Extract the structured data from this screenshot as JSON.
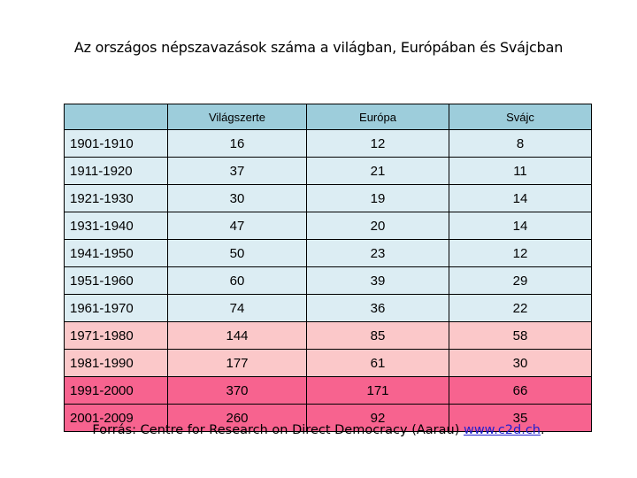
{
  "title": "Az országos népszavazások száma a világban, Európában és Svájcban",
  "table": {
    "headers": [
      "",
      "Világszerte",
      "Európa",
      "Svájc"
    ],
    "rows": [
      {
        "period": "1901-1910",
        "world": "16",
        "europe": "12",
        "swiss": "8",
        "tone": "blue"
      },
      {
        "period": "1911-1920",
        "world": "37",
        "europe": "21",
        "swiss": "11",
        "tone": "blue"
      },
      {
        "period": "1921-1930",
        "world": "30",
        "europe": "19",
        "swiss": "14",
        "tone": "blue"
      },
      {
        "period": "1931-1940",
        "world": "47",
        "europe": "20",
        "swiss": "14",
        "tone": "blue"
      },
      {
        "period": "1941-1950",
        "world": "50",
        "europe": "23",
        "swiss": "12",
        "tone": "blue"
      },
      {
        "period": "1951-1960",
        "world": "60",
        "europe": "39",
        "swiss": "29",
        "tone": "blue"
      },
      {
        "period": "1961-1970",
        "world": "74",
        "europe": "36",
        "swiss": "22",
        "tone": "blue"
      },
      {
        "period": "1971-1980",
        "world": "144",
        "europe": "85",
        "swiss": "58",
        "tone": "pink"
      },
      {
        "period": "1981-1990",
        "world": "177",
        "europe": "61",
        "swiss": "30",
        "tone": "pink"
      },
      {
        "period": "1991-2000",
        "world": "370",
        "europe": "171",
        "swiss": "66",
        "tone": "hot"
      },
      {
        "period": "2001-2009",
        "world": "260",
        "europe": "92",
        "swiss": "35",
        "tone": "hot"
      }
    ]
  },
  "source": {
    "prefix": "Forrás: Centre for Research on Direct Democracy (Aarau) ",
    "link": "www.c2d.ch",
    "suffix": "."
  },
  "colors": {
    "header_bg": "#9dcddb",
    "row_blue": "#dcedf3",
    "row_pink": "#fbc8c9",
    "row_hot": "#f7638f",
    "link": "#1f1fd0"
  }
}
